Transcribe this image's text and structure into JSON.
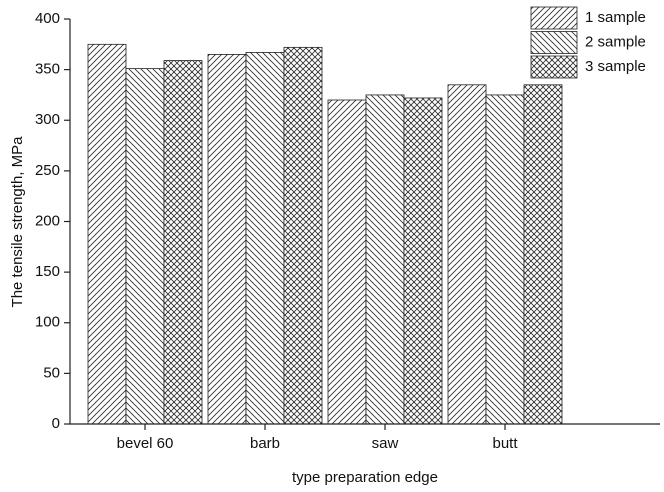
{
  "chart_data": {
    "type": "bar",
    "xlabel": "type preparation  edge",
    "ylabel": "The tensile strength, MPa",
    "categories": [
      "bevel 60",
      "barb",
      "saw",
      "butt"
    ],
    "series": [
      {
        "name": "1 sample",
        "color": "#333333",
        "hatch": "forward",
        "values": [
          375,
          365,
          320,
          335
        ]
      },
      {
        "name": "2 sample",
        "color": "#333333",
        "hatch": "back",
        "values": [
          351,
          367,
          325,
          325
        ]
      },
      {
        "name": "3 sample",
        "color": "#333333",
        "hatch": "cross",
        "values": [
          359,
          372,
          322,
          335
        ]
      }
    ],
    "ylim": [
      0,
      400
    ],
    "yticks": [
      0,
      50,
      100,
      150,
      200,
      250,
      300,
      350,
      400
    ],
    "legend": "top-right"
  }
}
